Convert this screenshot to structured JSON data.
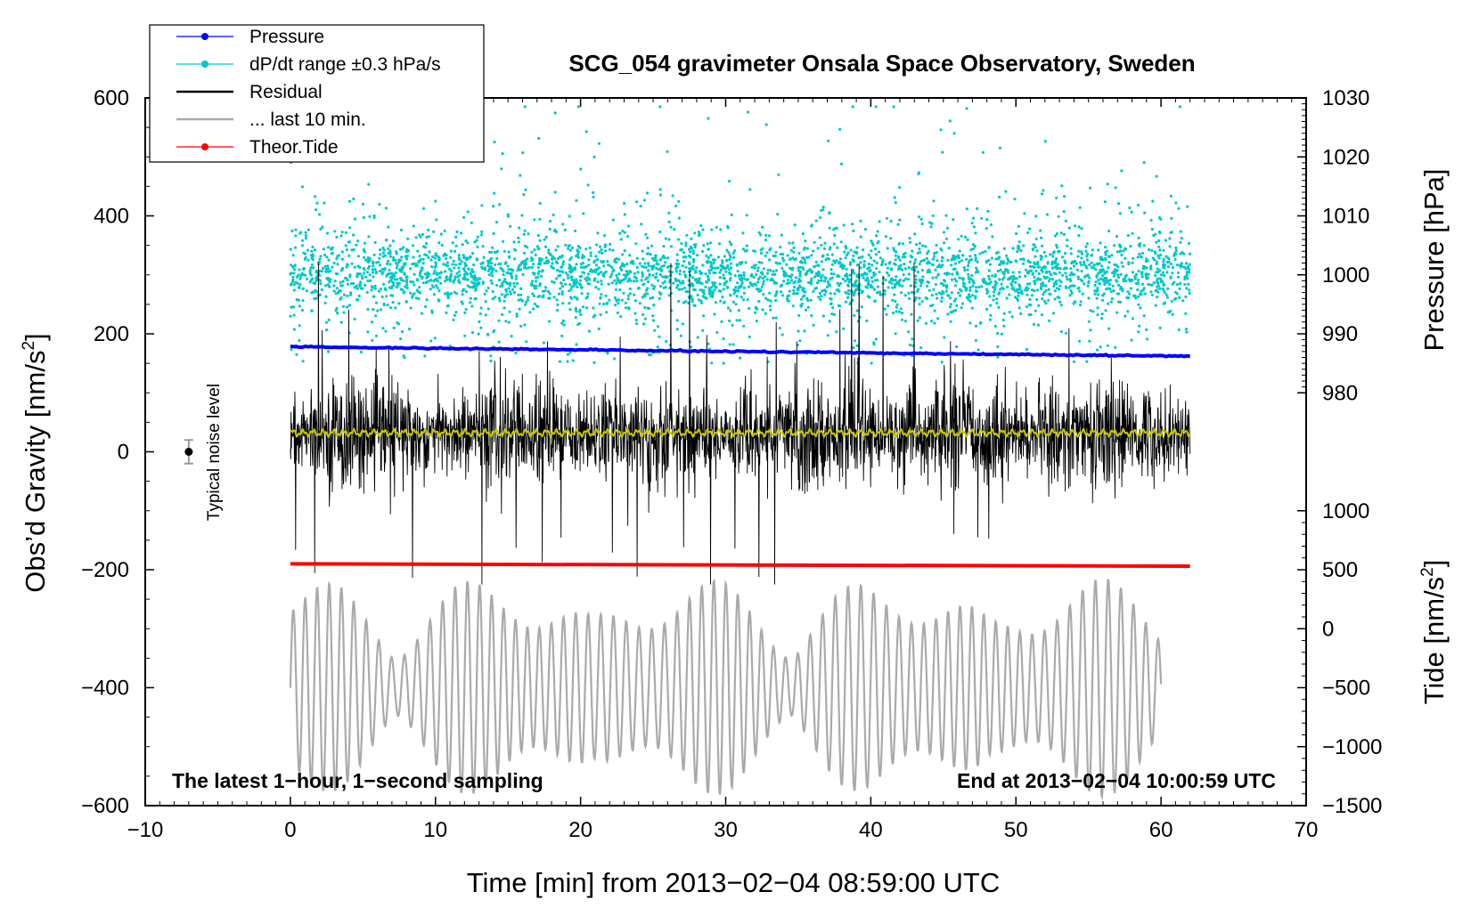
{
  "chart_data": {
    "type": "line",
    "title": "SCG_054 gravimeter Onsala Space Observatory, Sweden",
    "xlabel": "Time [min] from 2013−02−04 08:59:00 UTC",
    "ylabel_left_main": "Obs’d Gravity [nm/s",
    "ylabel_left_sup": "2",
    "ylabel_left_close": "]",
    "ylabel_right_pressure": "Pressure [hPa]",
    "ylabel_right_tide_main": "Tide [nm/s",
    "ylabel_right_tide_sup": "2",
    "ylabel_right_tide_close": "]",
    "xlim": [
      -10,
      70
    ],
    "ylim": [
      -600,
      600
    ],
    "x_ticks": [
      -10,
      0,
      10,
      20,
      30,
      40,
      50,
      60,
      70
    ],
    "x_tick_labels": [
      "−10",
      "0",
      "10",
      "20",
      "30",
      "40",
      "50",
      "60",
      "70"
    ],
    "y_ticks": [
      600,
      400,
      200,
      0,
      -200,
      -400,
      -600
    ],
    "y_tick_labels": [
      "600",
      "400",
      "200",
      "0",
      "−200",
      "−400",
      "−600"
    ],
    "pressure_axis": {
      "ticks": [
        1030,
        1020,
        1010,
        1000,
        990,
        980
      ],
      "tick_labels": [
        "1030",
        "1020",
        "1010",
        "1000",
        "990",
        "980"
      ],
      "gravity_equiv": [
        600,
        500,
        400,
        300,
        200,
        100
      ]
    },
    "tide_axis": {
      "ticks": [
        1000,
        500,
        0,
        -500,
        -1000,
        -1500
      ],
      "tick_labels": [
        "1000",
        "500",
        "0",
        "−500",
        "−1000",
        "−1500"
      ],
      "gravity_equiv": [
        -100,
        -200,
        -300,
        -400,
        -500,
        -600
      ]
    },
    "legend": [
      {
        "label": "Pressure",
        "color": "#0000ff",
        "marker": "dot"
      },
      {
        "label": "dP/dt range ±0.3 hPa/s",
        "color": "#00c8c8",
        "marker": "dot"
      },
      {
        "label": "Residual",
        "color": "#000000",
        "marker": "line"
      },
      {
        "label": "... last 10 min.",
        "color": "#aaaaaa",
        "marker": "line"
      },
      {
        "label": "Theor.Tide",
        "color": "#ff0000",
        "marker": "dot"
      }
    ],
    "series": [
      {
        "name": "Pressure",
        "color": "#0000ff",
        "x": [
          0,
          62
        ],
        "y": [
          178,
          162
        ]
      },
      {
        "name": "Theor.Tide",
        "color": "#ff0000",
        "x": [
          0,
          62
        ],
        "y": [
          -190,
          -194
        ]
      },
      {
        "name": "Residual",
        "color": "#000000",
        "x_range": [
          0,
          62
        ],
        "baseline": 30,
        "amplitude": 60
      },
      {
        "name": "Smoothed residual",
        "color": "#c8c800",
        "x_range": [
          0,
          62
        ],
        "baseline": 32
      },
      {
        "name": "dP/dt",
        "color": "#00c8c8",
        "x_range": [
          0,
          62
        ],
        "center": 300
      },
      {
        "name": "... last 10 min.",
        "color": "#aaaaaa",
        "x_range": [
          0,
          60
        ],
        "center": -400
      }
    ],
    "noise_level": {
      "label": "Typical noise level",
      "x": -7,
      "y": 0,
      "err": 20
    },
    "annotation_left": "The latest 1−hour, 1−second sampling",
    "annotation_right": "End at 2013−02−04 10:00:59 UTC",
    "colors": {
      "pressure": "#0000ff",
      "dpdt": "#00c8c8",
      "residual": "#000000",
      "smooth": "#c8c800",
      "last10": "#aaaaaa",
      "tide": "#ff0000"
    }
  }
}
